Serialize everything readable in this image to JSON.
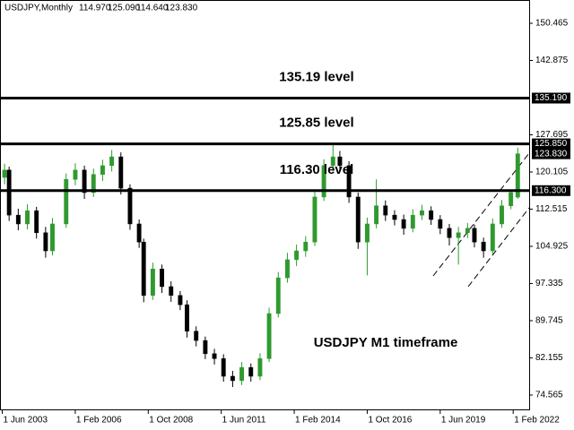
{
  "chart_data": {
    "type": "candlestick",
    "header": {
      "symbol": "USDJPY,Monthly",
      "values": [
        "114.970",
        "125.090",
        "114.640",
        "123.830"
      ]
    },
    "annotation": "USDJPY M1 timeframe",
    "up_color": "#2e9a2e",
    "down_color": "#000000",
    "x": [
      1,
      3,
      7,
      11,
      15,
      19,
      22,
      28,
      32,
      36,
      40,
      44,
      48,
      52,
      56,
      60,
      62,
      66,
      70,
      74,
      78,
      81,
      85,
      89,
      93,
      97,
      101,
      105,
      109,
      113,
      117,
      121,
      125,
      129,
      133,
      137,
      141,
      145,
      148,
      152,
      156,
      160,
      164,
      168,
      172,
      176,
      180,
      184,
      188,
      192,
      196,
      200,
      204,
      207,
      211,
      215,
      219,
      223,
      226
    ],
    "open": [
      119.0,
      120.5,
      111.3,
      109.5,
      112.2,
      107.7,
      104.0,
      109.5,
      118.6,
      120.5,
      115.9,
      119.6,
      121.4,
      123.2,
      116.8,
      109.5,
      105.8,
      94.9,
      100.3,
      96.7,
      94.9,
      93.0,
      87.6,
      85.7,
      83.0,
      82.0,
      78.4,
      77.5,
      80.2,
      78.4,
      82.0,
      91.2,
      98.5,
      102.2,
      104.0,
      105.8,
      115.0,
      121.4,
      123.2,
      121.4,
      115.0,
      105.8,
      109.5,
      113.2,
      111.3,
      110.4,
      108.6,
      111.3,
      112.2,
      110.4,
      108.6,
      106.7,
      107.7,
      108.6,
      105.8,
      104.0,
      109.5,
      113.2,
      114.97
    ],
    "high": [
      121.8,
      121.2,
      112.6,
      113.5,
      113.0,
      108.9,
      110.7,
      119.8,
      121.9,
      121.4,
      120.8,
      122.6,
      124.6,
      124.1,
      117.6,
      110.4,
      106.5,
      101.6,
      101.2,
      97.8,
      95.8,
      93.9,
      88.6,
      86.5,
      84.0,
      82.9,
      79.5,
      81.3,
      81.0,
      83.1,
      92.4,
      99.7,
      103.6,
      105.3,
      107.0,
      116.3,
      122.7,
      125.9,
      124.4,
      122.3,
      115.9,
      110.8,
      118.6,
      114.3,
      112.3,
      111.4,
      112.5,
      113.4,
      113.1,
      111.3,
      109.5,
      108.9,
      109.7,
      109.4,
      106.7,
      110.6,
      114.4,
      116.4,
      125.09
    ],
    "low": [
      117.6,
      110.1,
      108.2,
      108.4,
      106.5,
      102.6,
      103.1,
      108.7,
      117.4,
      114.6,
      115.0,
      118.3,
      120.2,
      115.5,
      108.3,
      104.6,
      93.5,
      94.0,
      95.4,
      93.6,
      91.9,
      86.3,
      84.5,
      81.9,
      80.8,
      77.3,
      76.2,
      76.6,
      77.3,
      77.6,
      81.3,
      90.4,
      97.5,
      100.9,
      102.8,
      105.0,
      114.2,
      120.3,
      120.2,
      113.8,
      104.4,
      99.0,
      108.6,
      110.1,
      109.2,
      107.3,
      107.8,
      110.3,
      109.3,
      107.4,
      105.1,
      101.2,
      106.6,
      104.7,
      102.6,
      103.3,
      108.7,
      112.5,
      114.64
    ],
    "close": [
      120.5,
      111.3,
      109.5,
      112.2,
      107.7,
      104.0,
      109.5,
      118.6,
      120.5,
      115.9,
      119.6,
      121.4,
      123.2,
      116.8,
      109.5,
      105.8,
      94.9,
      100.3,
      96.7,
      94.9,
      93.0,
      87.6,
      85.7,
      83.0,
      82.0,
      78.4,
      77.5,
      80.2,
      78.4,
      82.0,
      91.2,
      98.5,
      102.2,
      104.0,
      105.8,
      115.0,
      121.4,
      123.2,
      121.4,
      115.0,
      105.8,
      109.5,
      113.2,
      111.3,
      110.4,
      108.6,
      111.3,
      112.2,
      110.4,
      108.6,
      106.7,
      107.7,
      108.6,
      105.8,
      104.0,
      109.5,
      113.2,
      115.9,
      123.83
    ],
    "xlim": [
      -1,
      231
    ],
    "xticks": [
      {
        "value": 0,
        "label": "1 Jun 2003"
      },
      {
        "value": 32,
        "label": "1 Feb 2006"
      },
      {
        "value": 64,
        "label": "1 Oct 2008"
      },
      {
        "value": 96,
        "label": "1 Jun 2011"
      },
      {
        "value": 128,
        "label": "1 Feb 2014"
      },
      {
        "value": 160,
        "label": "1 Oct 2016"
      },
      {
        "value": 192,
        "label": "1 Jun 2019"
      },
      {
        "value": 224,
        "label": "1 Feb 2022"
      }
    ],
    "ylim": [
      71.45,
      155.22
    ],
    "yticks": [
      150.465,
      142.875,
      127.695,
      120.105,
      112.515,
      104.925,
      97.335,
      89.745,
      82.155,
      74.565
    ],
    "levels": [
      {
        "value": 135.19,
        "label": "135.190",
        "annotation": "135.19 level"
      },
      {
        "value": 125.85,
        "label": "125.850",
        "annotation": "125.85 level"
      },
      {
        "value": 116.3,
        "label": "116.300",
        "annotation": "116.30 level"
      }
    ],
    "current_price": {
      "value": 123.83,
      "label": "123.830"
    }
  }
}
